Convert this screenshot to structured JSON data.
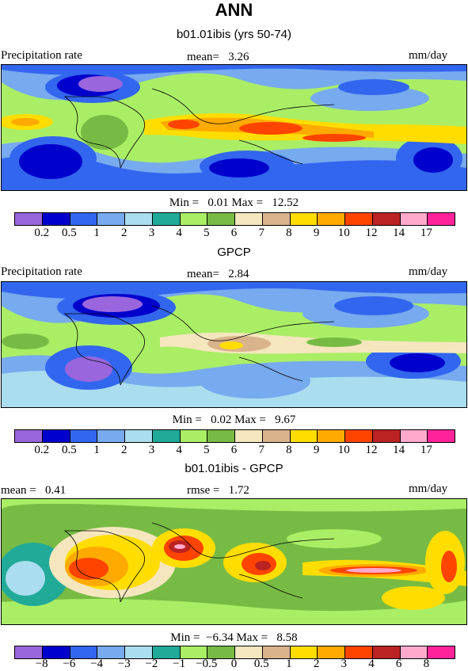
{
  "title": "ANN",
  "panels": [
    {
      "subtitle": "b01.01ibis (yrs 50-74)",
      "left_label": "Precipitation rate",
      "center_label": "mean=   3.26",
      "right_label": "mm/day",
      "stats": "Min =   0.01 Max =   12.52",
      "colorbar_ticks": [
        "0.2",
        "0.5",
        "1",
        "2",
        "3",
        "4",
        "5",
        "6",
        "7",
        "8",
        "9",
        "10",
        "12",
        "14",
        "17"
      ]
    },
    {
      "subtitle": "GPCP",
      "left_label": "Precipitation rate",
      "center_label": "mean=   2.84",
      "right_label": "mm/day",
      "stats": "Min =   0.02 Max =   9.67",
      "colorbar_ticks": [
        "0.2",
        "0.5",
        "1",
        "2",
        "3",
        "4",
        "5",
        "6",
        "7",
        "8",
        "9",
        "10",
        "12",
        "14",
        "17"
      ]
    },
    {
      "subtitle": "b01.01ibis - GPCP",
      "left_label": "mean =   0.41",
      "center_label": "rmse =   1.72",
      "right_label": "mm/day",
      "stats": "Min =  −6.34 Max =   8.58",
      "colorbar_ticks": [
        "−8",
        "−6",
        "−4",
        "−3",
        "−2",
        "−1",
        "−0.5",
        "0",
        "0.5",
        "1",
        "2",
        "3",
        "4",
        "6",
        "8"
      ]
    }
  ],
  "colors": {
    "palette": [
      "#9966dd",
      "#0000cc",
      "#3366ee",
      "#77aaee",
      "#aaddee",
      "#22aa99",
      "#aaee66",
      "#77bb44",
      "#f5e6be",
      "#d9b38c",
      "#ffdd00",
      "#ffaa00",
      "#ff4400",
      "#bb2222",
      "#ffaacc",
      "#ff2299"
    ]
  }
}
